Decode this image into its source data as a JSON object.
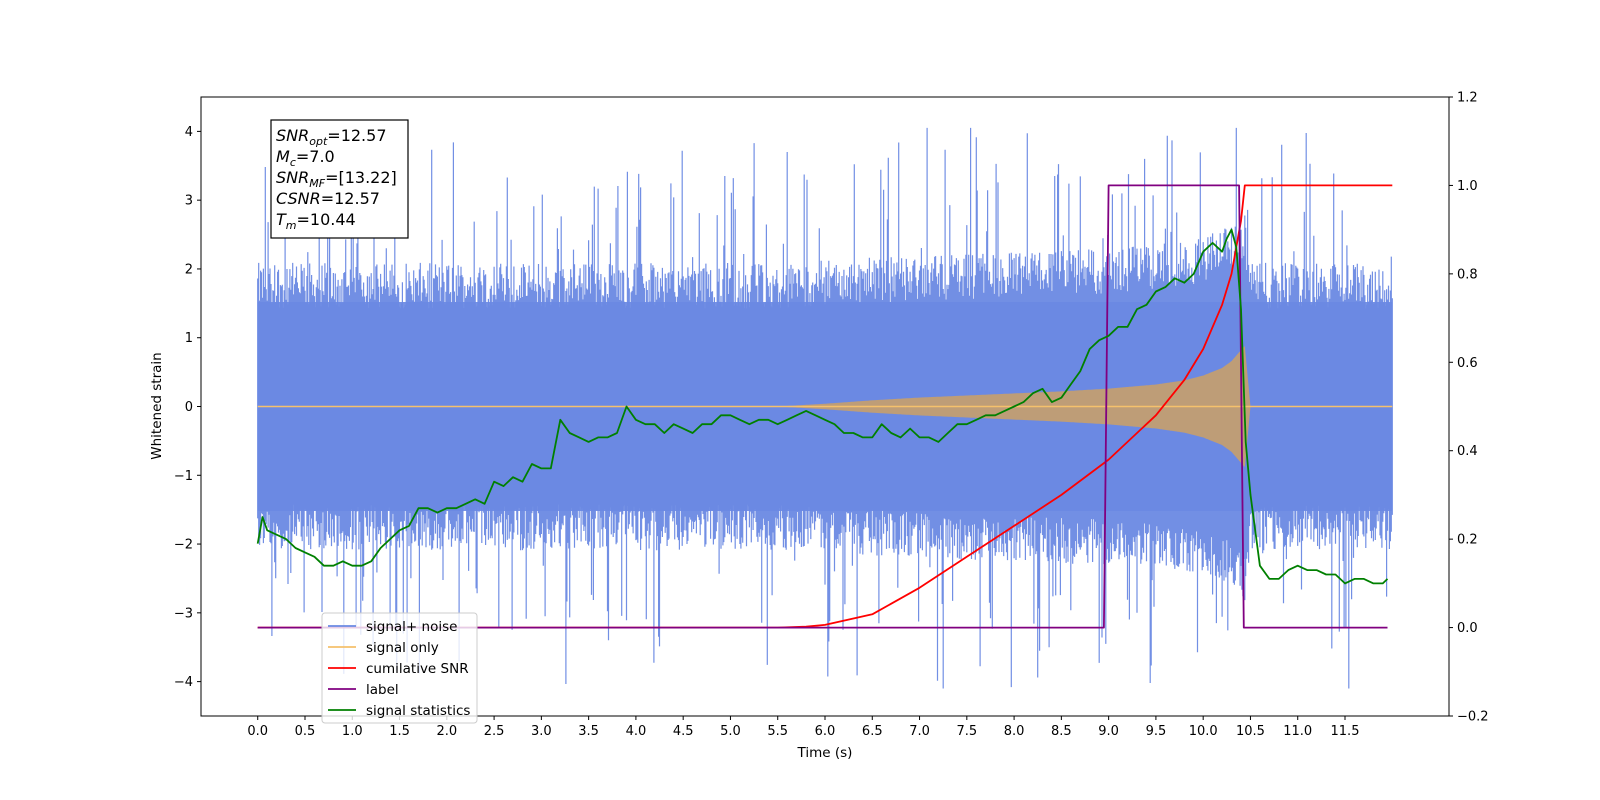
{
  "chart_data": {
    "type": "line",
    "title": "",
    "xlabel": "Time (s)",
    "ylabel": "Whitened strain",
    "y2label": "",
    "xlim": [
      -0.6,
      12.6
    ],
    "ylim": [
      -4.5,
      4.5
    ],
    "y2lim": [
      -0.2,
      1.2
    ],
    "grid": false,
    "legend_position": "lower-left",
    "x_ticks": [
      0.0,
      0.5,
      1.0,
      1.5,
      2.0,
      2.5,
      3.0,
      3.5,
      4.0,
      4.5,
      5.0,
      5.5,
      6.0,
      6.5,
      7.0,
      7.5,
      8.0,
      8.5,
      9.0,
      9.5,
      10.0,
      10.5,
      11.0,
      11.5
    ],
    "x_tick_labels": [
      "0.0",
      "0.5",
      "1.0",
      "1.5",
      "2.0",
      "2.5",
      "3.0",
      "3.5",
      "4.0",
      "4.5",
      "5.0",
      "5.5",
      "6.0",
      "6.5",
      "7.0",
      "7.5",
      "8.0",
      "8.5",
      "9.0",
      "9.5",
      "10.0",
      "10.5",
      "11.0",
      "11.5"
    ],
    "y_ticks": [
      -4,
      -3,
      -2,
      -1,
      0,
      1,
      2,
      3,
      4
    ],
    "y_tick_labels": [
      "−4",
      "−3",
      "−2",
      "−1",
      "0",
      "1",
      "2",
      "3",
      "4"
    ],
    "y2_ticks": [
      -0.2,
      0.0,
      0.2,
      0.4,
      0.6,
      0.8,
      1.0,
      1.2
    ],
    "y2_tick_labels": [
      "−0.2",
      "0.0",
      "0.2",
      "0.4",
      "0.6",
      "0.8",
      "1.0",
      "1.2"
    ],
    "annotation": [
      {
        "base": "SNR",
        "sub": "opt",
        "value": "=12.57"
      },
      {
        "base": "M",
        "sub": "c",
        "value": "=7.0"
      },
      {
        "base": "SNR",
        "sub": "MF",
        "value": "=[13.22]"
      },
      {
        "base": "CSNR",
        "sub": "",
        "value": "=12.57"
      },
      {
        "base": "T",
        "sub": "m",
        "value": "=10.44"
      }
    ],
    "legend": [
      {
        "label": "signal+ noise",
        "color": "#6a89e3"
      },
      {
        "label": "signal only",
        "color": "#f5c16c"
      },
      {
        "label": "cumilative SNR",
        "color": "#ff0000"
      },
      {
        "label": "label",
        "color": "#800080"
      },
      {
        "label": "signal statistics",
        "color": "#008000"
      }
    ],
    "series": [
      {
        "name": "signal+ noise",
        "axis": "left",
        "color": "#6a89e3",
        "representation": "band",
        "t_range": [
          0.0,
          12.0
        ],
        "typical_upper": 1.9,
        "typical_lower": -1.9,
        "peak_upper": 4.05,
        "peak_lower": -4.1
      },
      {
        "name": "signal only",
        "axis": "left",
        "color": "#f5c16c",
        "representation": "envelope",
        "t": [
          0.0,
          5.5,
          6.0,
          6.5,
          7.0,
          7.5,
          8.0,
          8.5,
          9.0,
          9.5,
          9.8,
          10.0,
          10.2,
          10.3,
          10.4,
          10.44,
          10.5,
          12.0
        ],
        "amplitude": [
          0.0,
          0.0,
          0.04,
          0.09,
          0.13,
          0.16,
          0.19,
          0.22,
          0.26,
          0.32,
          0.38,
          0.45,
          0.56,
          0.66,
          0.82,
          0.88,
          0.0,
          0.0
        ]
      },
      {
        "name": "cumilative SNR",
        "axis": "right",
        "color": "#ff0000",
        "t": [
          0.0,
          5.5,
          5.8,
          6.0,
          6.5,
          7.0,
          7.5,
          8.0,
          8.5,
          9.0,
          9.5,
          9.8,
          10.0,
          10.2,
          10.3,
          10.4,
          10.44,
          10.5,
          12.0
        ],
        "values": [
          0.0,
          0.0,
          0.002,
          0.006,
          0.03,
          0.09,
          0.16,
          0.23,
          0.3,
          0.38,
          0.48,
          0.56,
          0.63,
          0.73,
          0.8,
          0.92,
          1.0,
          1.0,
          1.0
        ]
      },
      {
        "name": "label",
        "axis": "right",
        "color": "#800080",
        "t": [
          0.0,
          8.95,
          9.0,
          10.38,
          10.43,
          11.95
        ],
        "values": [
          0.0,
          0.0,
          1.0,
          1.0,
          0.0,
          0.0
        ]
      },
      {
        "name": "signal statistics",
        "axis": "right",
        "color": "#008000",
        "t": [
          0.0,
          0.05,
          0.1,
          0.2,
          0.3,
          0.4,
          0.5,
          0.6,
          0.7,
          0.8,
          0.9,
          1.0,
          1.1,
          1.2,
          1.3,
          1.4,
          1.5,
          1.6,
          1.7,
          1.8,
          1.9,
          2.0,
          2.1,
          2.2,
          2.3,
          2.4,
          2.5,
          2.6,
          2.7,
          2.8,
          2.9,
          3.0,
          3.1,
          3.2,
          3.3,
          3.4,
          3.5,
          3.6,
          3.7,
          3.8,
          3.9,
          4.0,
          4.1,
          4.2,
          4.3,
          4.4,
          4.5,
          4.6,
          4.7,
          4.8,
          4.9,
          5.0,
          5.1,
          5.2,
          5.3,
          5.4,
          5.5,
          5.6,
          5.7,
          5.8,
          5.9,
          6.0,
          6.1,
          6.2,
          6.3,
          6.4,
          6.5,
          6.6,
          6.7,
          6.8,
          6.9,
          7.0,
          7.1,
          7.2,
          7.3,
          7.4,
          7.5,
          7.6,
          7.7,
          7.8,
          7.9,
          8.0,
          8.1,
          8.2,
          8.3,
          8.4,
          8.5,
          8.6,
          8.7,
          8.8,
          8.9,
          9.0,
          9.1,
          9.2,
          9.3,
          9.4,
          9.5,
          9.6,
          9.7,
          9.8,
          9.9,
          10.0,
          10.1,
          10.2,
          10.25,
          10.3,
          10.35,
          10.4,
          10.45,
          10.5,
          10.6,
          10.7,
          10.8,
          10.9,
          11.0,
          11.1,
          11.2,
          11.3,
          11.4,
          11.5,
          11.6,
          11.7,
          11.8,
          11.9,
          11.95
        ],
        "values": [
          0.19,
          0.25,
          0.22,
          0.21,
          0.2,
          0.18,
          0.17,
          0.16,
          0.14,
          0.14,
          0.15,
          0.14,
          0.14,
          0.15,
          0.18,
          0.2,
          0.22,
          0.23,
          0.27,
          0.27,
          0.26,
          0.27,
          0.27,
          0.28,
          0.29,
          0.28,
          0.33,
          0.32,
          0.34,
          0.33,
          0.37,
          0.36,
          0.36,
          0.47,
          0.44,
          0.43,
          0.42,
          0.43,
          0.43,
          0.44,
          0.5,
          0.47,
          0.46,
          0.46,
          0.44,
          0.46,
          0.45,
          0.44,
          0.46,
          0.46,
          0.48,
          0.48,
          0.47,
          0.46,
          0.47,
          0.47,
          0.46,
          0.47,
          0.48,
          0.49,
          0.48,
          0.47,
          0.46,
          0.44,
          0.44,
          0.43,
          0.43,
          0.46,
          0.44,
          0.43,
          0.45,
          0.43,
          0.43,
          0.42,
          0.44,
          0.46,
          0.46,
          0.47,
          0.48,
          0.48,
          0.49,
          0.5,
          0.51,
          0.53,
          0.54,
          0.51,
          0.52,
          0.55,
          0.58,
          0.63,
          0.65,
          0.66,
          0.68,
          0.68,
          0.72,
          0.73,
          0.76,
          0.77,
          0.79,
          0.78,
          0.8,
          0.85,
          0.87,
          0.85,
          0.88,
          0.9,
          0.86,
          0.72,
          0.42,
          0.3,
          0.14,
          0.11,
          0.11,
          0.13,
          0.14,
          0.13,
          0.13,
          0.12,
          0.12,
          0.1,
          0.11,
          0.11,
          0.1,
          0.1,
          0.11
        ]
      }
    ]
  }
}
